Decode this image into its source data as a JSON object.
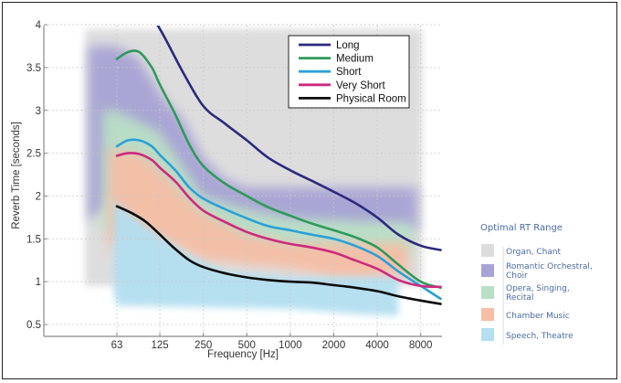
{
  "chart_data": {
    "type": "line",
    "title": "",
    "xlabel": "Frequency [Hz]",
    "ylabel": "Reverb Time [seconds]",
    "x_scale": "log2",
    "x_ticks": [
      63,
      125,
      250,
      500,
      1000,
      2000,
      4000,
      8000
    ],
    "x_tick_labels": [
      "63",
      "125",
      "250",
      "500",
      "1000",
      "2000",
      "4000",
      "8000"
    ],
    "xlim": [
      28,
      11000
    ],
    "y_ticks": [
      0.5,
      1,
      1.5,
      2,
      2.5,
      3,
      3.5,
      4
    ],
    "y_tick_labels": [
      "0.5",
      "1",
      "1.5",
      "2",
      "2.5",
      "3",
      "3.5",
      "4"
    ],
    "ylim": [
      0.4,
      4
    ],
    "grid": true,
    "legend_position": "top-right",
    "series": [
      {
        "name": "Long",
        "color": "#2b2a7e",
        "x": [
          90,
          125,
          180,
          250,
          350,
          500,
          700,
          1000,
          1400,
          2000,
          2800,
          4000,
          5600,
          8000,
          11000
        ],
        "y": [
          4.3,
          3.95,
          3.45,
          3.05,
          2.85,
          2.65,
          2.45,
          2.3,
          2.18,
          2.05,
          1.92,
          1.75,
          1.55,
          1.42,
          1.37
        ]
      },
      {
        "name": "Medium",
        "color": "#2e9a5a",
        "x": [
          63,
          75,
          90,
          110,
          125,
          160,
          200,
          250,
          350,
          500,
          700,
          1000,
          1400,
          2000,
          2800,
          4000,
          5600,
          8000,
          11000
        ],
        "y": [
          3.6,
          3.68,
          3.68,
          3.5,
          3.3,
          2.95,
          2.6,
          2.35,
          2.15,
          2.0,
          1.87,
          1.77,
          1.68,
          1.6,
          1.52,
          1.4,
          1.2,
          1.0,
          0.93
        ]
      },
      {
        "name": "Short",
        "color": "#2aa0d8",
        "x": [
          63,
          75,
          90,
          110,
          125,
          160,
          200,
          250,
          350,
          500,
          700,
          1000,
          1400,
          2000,
          2800,
          4000,
          5600,
          8000,
          11000
        ],
        "y": [
          2.58,
          2.65,
          2.65,
          2.58,
          2.48,
          2.3,
          2.1,
          1.97,
          1.85,
          1.74,
          1.65,
          1.6,
          1.55,
          1.5,
          1.42,
          1.3,
          1.12,
          0.95,
          0.8
        ]
      },
      {
        "name": "Very Short",
        "color": "#cc2a7e",
        "x": [
          63,
          75,
          90,
          110,
          125,
          160,
          200,
          250,
          350,
          500,
          700,
          1000,
          1400,
          2000,
          2800,
          4000,
          5600,
          8000,
          11000
        ],
        "y": [
          2.47,
          2.5,
          2.49,
          2.42,
          2.33,
          2.17,
          1.98,
          1.83,
          1.7,
          1.58,
          1.5,
          1.44,
          1.4,
          1.34,
          1.25,
          1.15,
          1.02,
          0.95,
          0.94
        ]
      },
      {
        "name": "Physical Room",
        "color": "#0b0b0b",
        "x": [
          63,
          80,
          100,
          125,
          160,
          200,
          250,
          350,
          500,
          700,
          1000,
          1400,
          2000,
          2800,
          4000,
          5600,
          8000,
          11000
        ],
        "y": [
          1.88,
          1.8,
          1.7,
          1.55,
          1.38,
          1.25,
          1.17,
          1.1,
          1.05,
          1.02,
          1.0,
          0.99,
          0.96,
          0.93,
          0.89,
          0.83,
          0.78,
          0.74
        ]
      }
    ],
    "ranges": [
      {
        "name": "Organ, Chant",
        "color": "#dcdcdc"
      },
      {
        "name": "Romantic Orchestral, Choir",
        "color": "#a7a3d4"
      },
      {
        "name": "Opera, Singing, Recital",
        "color": "#b9dfc6"
      },
      {
        "name": "Chamber Music",
        "color": "#f6bea6"
      },
      {
        "name": "Speech, Theatre",
        "color": "#b3dff0"
      }
    ],
    "range_legend_title": "Optimal RT Range"
  }
}
